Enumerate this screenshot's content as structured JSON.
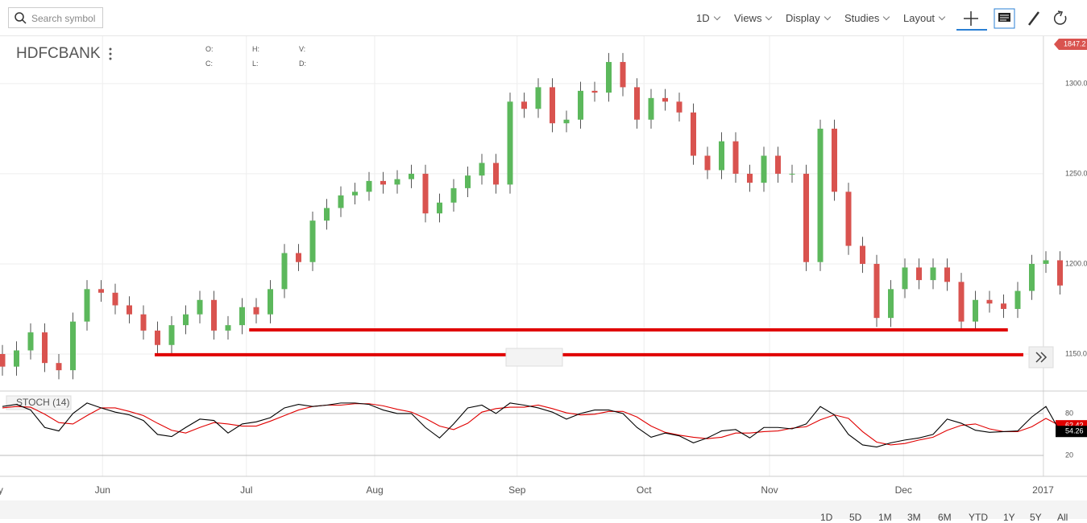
{
  "toolbar": {
    "search_placeholder": "Search symbol",
    "interval": "1D",
    "menus": [
      "Views",
      "Display",
      "Studies",
      "Layout"
    ]
  },
  "legend": {
    "symbol": "HDFCBANK",
    "fields": [
      "O:",
      "H:",
      "V:",
      "C:",
      "L:",
      "D:"
    ]
  },
  "range_buttons": [
    "1D",
    "5D",
    "1M",
    "3M",
    "6M",
    "YTD",
    "1Y",
    "5Y",
    "All"
  ],
  "chart_data": {
    "type": "candlestick",
    "up_color": "#5cb85c",
    "down_color": "#d9534f",
    "open": [
      1150,
      1143,
      1152,
      1162,
      1145,
      1141,
      1168,
      1186,
      1184,
      1177,
      1172,
      1163,
      1155,
      1166,
      1172,
      1180,
      1163,
      1166,
      1176,
      1172,
      1186,
      1206,
      1201,
      1224,
      1231,
      1238,
      1240,
      1246,
      1244,
      1247,
      1250,
      1228,
      1234,
      1242,
      1249,
      1256,
      1244,
      1290,
      1286,
      1298,
      1278,
      1280,
      1296,
      1295,
      1312,
      1298,
      1280,
      1292,
      1290,
      1284,
      1260,
      1252,
      1268,
      1250,
      1245,
      1260,
      1250,
      1250,
      1201,
      1275,
      1240,
      1210,
      1200,
      1170,
      1186,
      1198,
      1191,
      1198,
      1190,
      1168,
      1180,
      1178,
      1175,
      1185,
      1200,
      1202
    ],
    "high": [
      1155,
      1157,
      1167,
      1167,
      1150,
      1173,
      1191,
      1191,
      1189,
      1182,
      1177,
      1168,
      1171,
      1177,
      1185,
      1185,
      1171,
      1181,
      1181,
      1191,
      1211,
      1211,
      1229,
      1236,
      1243,
      1245,
      1251,
      1251,
      1252,
      1255,
      1255,
      1239,
      1247,
      1254,
      1261,
      1261,
      1295,
      1295,
      1303,
      1303,
      1285,
      1301,
      1301,
      1317,
      1317,
      1303,
      1297,
      1297,
      1295,
      1289,
      1265,
      1273,
      1273,
      1255,
      1265,
      1265,
      1255,
      1255,
      1280,
      1280,
      1245,
      1215,
      1205,
      1191,
      1203,
      1203,
      1203,
      1203,
      1195,
      1185,
      1185,
      1183,
      1190,
      1205,
      1207,
      1207
    ],
    "low": [
      1138,
      1138,
      1147,
      1140,
      1136,
      1136,
      1163,
      1179,
      1172,
      1167,
      1158,
      1150,
      1150,
      1161,
      1167,
      1158,
      1158,
      1161,
      1167,
      1167,
      1181,
      1196,
      1196,
      1219,
      1226,
      1233,
      1235,
      1239,
      1239,
      1242,
      1223,
      1223,
      1229,
      1237,
      1244,
      1239,
      1239,
      1281,
      1281,
      1273,
      1273,
      1275,
      1290,
      1290,
      1293,
      1275,
      1275,
      1285,
      1279,
      1255,
      1247,
      1247,
      1245,
      1240,
      1240,
      1245,
      1245,
      1196,
      1196,
      1235,
      1205,
      1195,
      1165,
      1165,
      1181,
      1186,
      1186,
      1185,
      1163,
      1163,
      1173,
      1170,
      1170,
      1180,
      1195,
      1183
    ],
    "close": [
      1143,
      1152,
      1162,
      1145,
      1141,
      1168,
      1186,
      1184,
      1177,
      1172,
      1163,
      1155,
      1166,
      1172,
      1180,
      1163,
      1166,
      1176,
      1172,
      1186,
      1206,
      1201,
      1224,
      1231,
      1238,
      1240,
      1246,
      1244,
      1247,
      1250,
      1228,
      1234,
      1242,
      1249,
      1256,
      1244,
      1290,
      1286,
      1298,
      1278,
      1280,
      1296,
      1295,
      1312,
      1298,
      1280,
      1292,
      1290,
      1284,
      1260,
      1252,
      1268,
      1250,
      1245,
      1260,
      1250,
      1250,
      1201,
      1275,
      1240,
      1210,
      1200,
      1170,
      1186,
      1198,
      1191,
      1198,
      1190,
      1168,
      1180,
      1178,
      1175,
      1185,
      1200,
      1202,
      1188
    ],
    "ylim": [
      1129.9,
      1326.3
    ],
    "yticks": [
      {
        "value": 1300,
        "label": "1300.0"
      },
      {
        "value": 1250,
        "label": "1250.0"
      },
      {
        "value": 1200,
        "label": "1200.0"
      },
      {
        "value": 1150,
        "label": "1150.0"
      }
    ],
    "price_tag": "1847.2",
    "xticks": [
      {
        "value": -0.6,
        "label": "May"
      },
      {
        "value": 7.1,
        "label": "Jun"
      },
      {
        "value": 17.3,
        "label": "Jul"
      },
      {
        "value": 26.4,
        "label": "Aug"
      },
      {
        "value": 36.5,
        "label": "Sep"
      },
      {
        "value": 45.5,
        "label": "Oct"
      },
      {
        "value": 54.4,
        "label": "Nov"
      },
      {
        "value": 63.9,
        "label": "Dec"
      },
      {
        "value": 73.8,
        "label": "2017"
      }
    ],
    "drawings": [
      {
        "value": 1163.4,
        "start": 17.5,
        "end": 71.3,
        "color": "#e00000"
      },
      {
        "value": 1149.6,
        "start": 10.8,
        "end": 72.4,
        "color": "#e00000"
      }
    ],
    "indicator": {
      "name": "STOCH (14)",
      "ylim": [
        -10,
        111
      ],
      "yticks": [
        80,
        20
      ],
      "k": {
        "color": "#000000",
        "values": [
          90,
          93,
          85,
          60,
          55,
          80,
          95,
          88,
          82,
          78,
          70,
          50,
          47,
          60,
          72,
          70,
          52,
          65,
          68,
          74,
          88,
          93,
          90,
          92,
          95,
          95,
          93,
          85,
          80,
          80,
          60,
          45,
          65,
          88,
          92,
          80,
          95,
          92,
          88,
          82,
          72,
          80,
          85,
          85,
          80,
          60,
          46,
          52,
          48,
          38,
          45,
          55,
          57,
          45,
          60,
          60,
          58,
          65,
          90,
          78,
          50,
          35,
          32,
          38,
          42,
          45,
          50,
          72,
          66,
          56,
          53,
          54,
          55,
          75,
          90,
          54.26
        ]
      },
      "d": {
        "color": "#e00000",
        "values": [
          88,
          90,
          89,
          79,
          67,
          65,
          77,
          88,
          88,
          83,
          77,
          66,
          56,
          52,
          60,
          67,
          65,
          62,
          62,
          69,
          77,
          85,
          90,
          92,
          92,
          94,
          94,
          91,
          86,
          82,
          73,
          62,
          57,
          66,
          82,
          87,
          89,
          89,
          92,
          87,
          81,
          78,
          79,
          83,
          83,
          75,
          62,
          53,
          49,
          46,
          44,
          46,
          52,
          52,
          54,
          55,
          59,
          61,
          71,
          78,
          73,
          54,
          39,
          35,
          37,
          42,
          46,
          56,
          63,
          65,
          58,
          54,
          54,
          61,
          73,
          62.42
        ]
      }
    }
  }
}
